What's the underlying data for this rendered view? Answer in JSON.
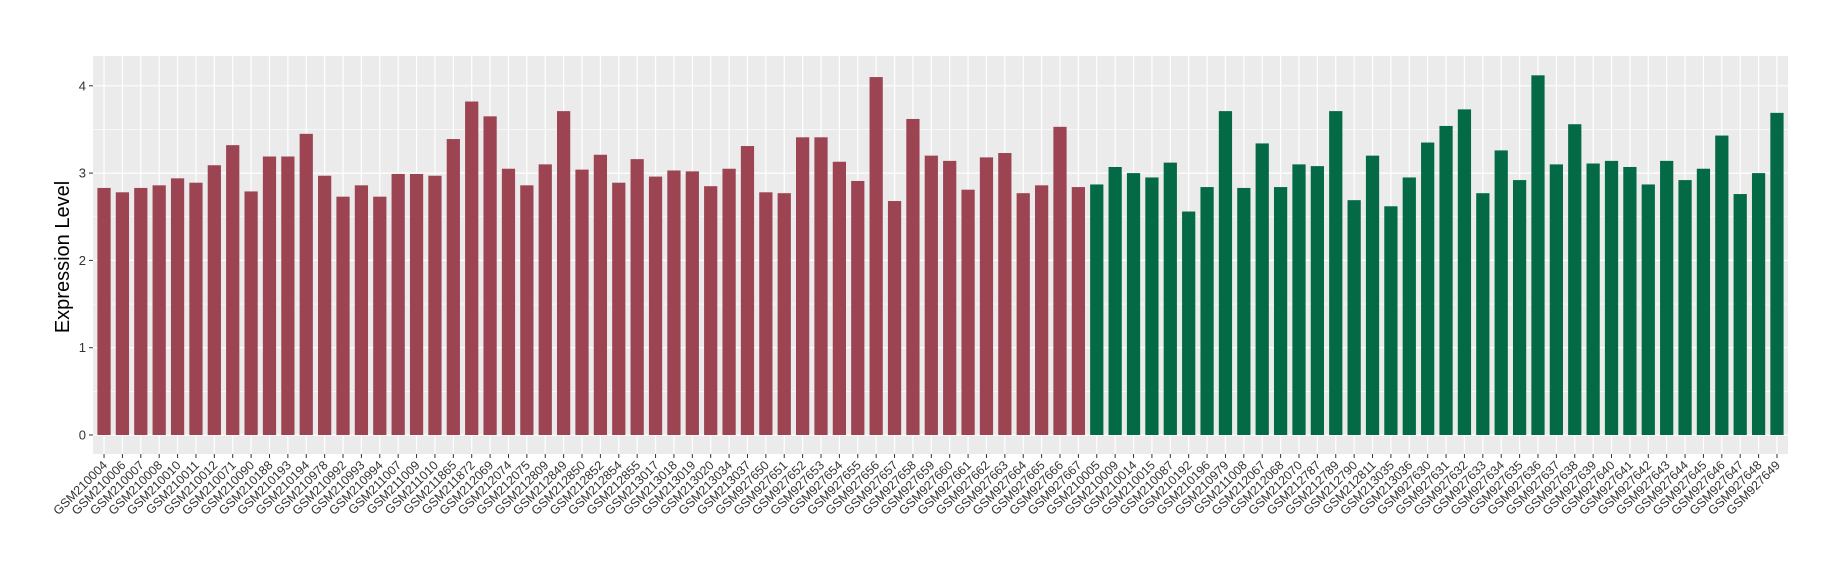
{
  "chart_data": {
    "type": "bar",
    "title": "",
    "xlabel": "",
    "ylabel": "Expression Level",
    "ylim": [
      0,
      4.4
    ],
    "yticks": [
      0,
      1,
      2,
      3,
      4
    ],
    "grid": true,
    "legend": "none",
    "colors": {
      "group1": "#9c4452",
      "group2": "#046a46",
      "panel": "#ebebeb",
      "grid": "#ffffff"
    },
    "categories": [
      "GSM210004",
      "GSM210006",
      "GSM210007",
      "GSM210008",
      "GSM210010",
      "GSM210011",
      "GSM210012",
      "GSM210071",
      "GSM210090",
      "GSM210188",
      "GSM210193",
      "GSM210194",
      "GSM210978",
      "GSM210992",
      "GSM210993",
      "GSM210994",
      "GSM211007",
      "GSM211009",
      "GSM211010",
      "GSM211865",
      "GSM211872",
      "GSM212069",
      "GSM212074",
      "GSM212075",
      "GSM212809",
      "GSM212849",
      "GSM212850",
      "GSM212852",
      "GSM212854",
      "GSM212855",
      "GSM213017",
      "GSM213018",
      "GSM213019",
      "GSM213020",
      "GSM213034",
      "GSM213037",
      "GSM927650",
      "GSM927651",
      "GSM927652",
      "GSM927653",
      "GSM927654",
      "GSM927655",
      "GSM927656",
      "GSM927657",
      "GSM927658",
      "GSM927659",
      "GSM927660",
      "GSM927661",
      "GSM927662",
      "GSM927663",
      "GSM927664",
      "GSM927665",
      "GSM927666",
      "GSM927667",
      "GSM210005",
      "GSM210009",
      "GSM210014",
      "GSM210015",
      "GSM210087",
      "GSM210192",
      "GSM210196",
      "GSM210979",
      "GSM211008",
      "GSM212067",
      "GSM212068",
      "GSM212070",
      "GSM212787",
      "GSM212789",
      "GSM212790",
      "GSM212811",
      "GSM213035",
      "GSM213036",
      "GSM927630",
      "GSM927631",
      "GSM927632",
      "GSM927633",
      "GSM927634",
      "GSM927635",
      "GSM927636",
      "GSM927637",
      "GSM927638",
      "GSM927639",
      "GSM927640",
      "GSM927641",
      "GSM927642",
      "GSM927643",
      "GSM927644",
      "GSM927645",
      "GSM927646",
      "GSM927647",
      "GSM927648",
      "GSM927649"
    ],
    "values": [
      2.83,
      2.78,
      2.83,
      2.86,
      2.94,
      2.89,
      3.09,
      3.32,
      2.79,
      3.19,
      3.19,
      3.45,
      2.97,
      2.73,
      2.86,
      2.73,
      2.99,
      2.99,
      2.97,
      3.39,
      3.82,
      3.65,
      3.05,
      2.86,
      3.1,
      3.71,
      3.04,
      3.21,
      2.89,
      3.16,
      2.96,
      3.03,
      3.02,
      2.85,
      3.05,
      3.31,
      2.78,
      2.77,
      3.41,
      3.41,
      3.13,
      2.91,
      4.1,
      2.68,
      3.62,
      3.2,
      3.14,
      2.81,
      3.18,
      3.23,
      2.77,
      2.86,
      3.53,
      2.84,
      2.87,
      3.07,
      3.0,
      2.95,
      3.12,
      2.56,
      2.84,
      3.71,
      2.83,
      3.34,
      2.84,
      3.1,
      3.08,
      3.71,
      2.69,
      3.2,
      2.62,
      2.95,
      3.35,
      3.54,
      3.73,
      2.77,
      3.26,
      2.92,
      4.12,
      3.1,
      3.56,
      3.11,
      3.14,
      3.07,
      2.87,
      3.14,
      2.92,
      3.05,
      3.43,
      2.76,
      3.0,
      3.69
    ],
    "groups": [
      "group1",
      "group1",
      "group1",
      "group1",
      "group1",
      "group1",
      "group1",
      "group1",
      "group1",
      "group1",
      "group1",
      "group1",
      "group1",
      "group1",
      "group1",
      "group1",
      "group1",
      "group1",
      "group1",
      "group1",
      "group1",
      "group1",
      "group1",
      "group1",
      "group1",
      "group1",
      "group1",
      "group1",
      "group1",
      "group1",
      "group1",
      "group1",
      "group1",
      "group1",
      "group1",
      "group1",
      "group1",
      "group1",
      "group1",
      "group1",
      "group1",
      "group1",
      "group1",
      "group1",
      "group1",
      "group1",
      "group1",
      "group1",
      "group1",
      "group1",
      "group1",
      "group1",
      "group1",
      "group1",
      "group2",
      "group2",
      "group2",
      "group2",
      "group2",
      "group2",
      "group2",
      "group2",
      "group2",
      "group2",
      "group2",
      "group2",
      "group2",
      "group2",
      "group2",
      "group2",
      "group2",
      "group2",
      "group2",
      "group2",
      "group2",
      "group2",
      "group2",
      "group2",
      "group2",
      "group2",
      "group2",
      "group2",
      "group2",
      "group2",
      "group2",
      "group2",
      "group2",
      "group2",
      "group2",
      "group2",
      "group2",
      "group2"
    ]
  }
}
